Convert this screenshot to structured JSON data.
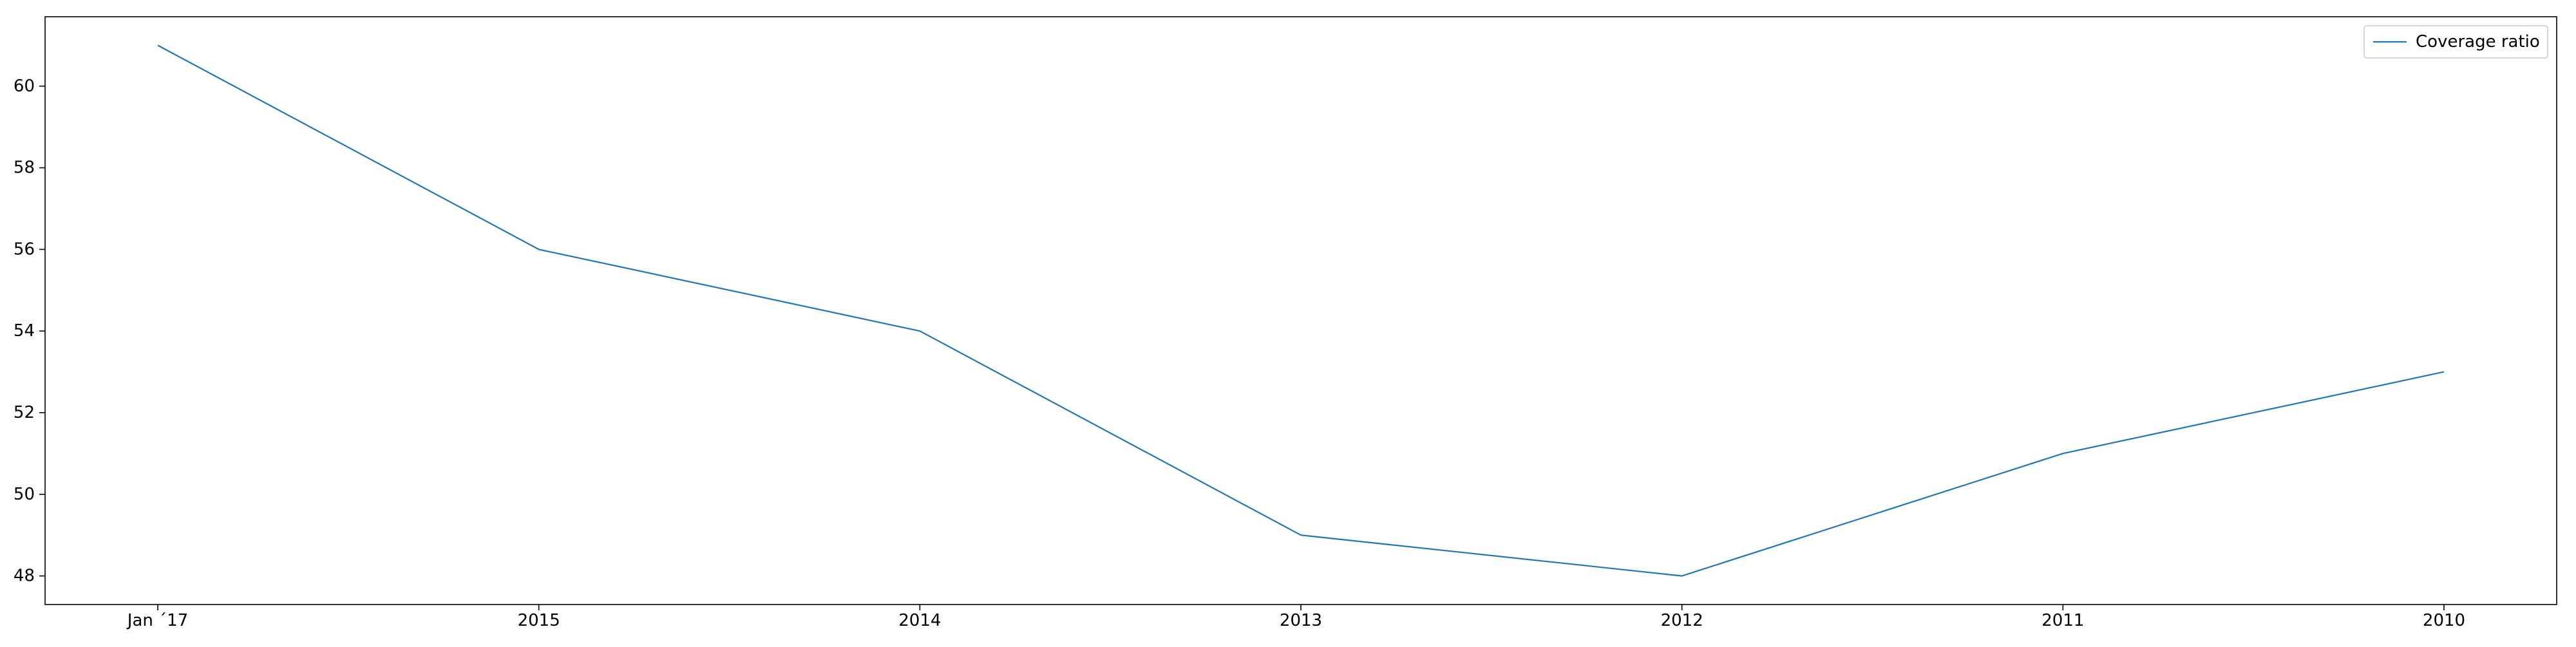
{
  "chart_data": {
    "type": "line",
    "categories": [
      "Jan ´17",
      "2015",
      "2014",
      "2013",
      "2012",
      "2011",
      "2010"
    ],
    "series": [
      {
        "name": "Coverage ratio",
        "values": [
          61,
          56,
          54,
          49,
          48,
          51,
          53
        ],
        "color": "#1f77b4"
      }
    ],
    "ylim": [
      47.3,
      61.7
    ],
    "yticks": [
      48,
      50,
      52,
      54,
      56,
      58,
      60
    ],
    "grid": false,
    "legend_position": "top-right",
    "title": "",
    "xlabel": "",
    "ylabel": ""
  }
}
